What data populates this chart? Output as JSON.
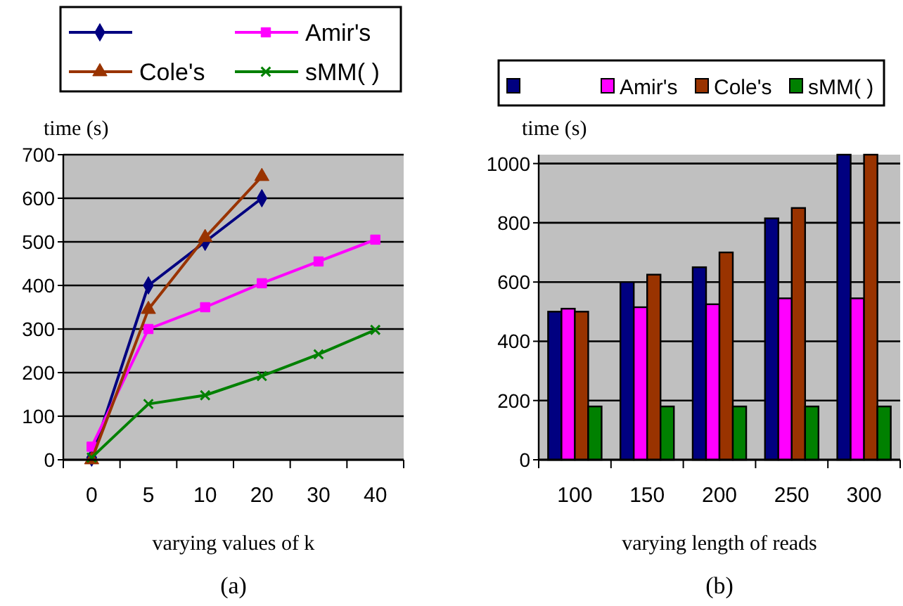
{
  "chart_data": [
    {
      "type": "line",
      "ylabel": "time (s)",
      "xlabel": "varying values of k",
      "annotations": [
        "(a)"
      ],
      "categories": [
        "0",
        "5",
        "10",
        "20",
        "30",
        "40"
      ],
      "ylim": [
        0,
        700
      ],
      "yticks": [
        0,
        100,
        200,
        300,
        400,
        500,
        600,
        700
      ],
      "grid": "y",
      "legend": "top",
      "series": [
        {
          "color": "#000080",
          "marker": "diamond",
          "values": [
            5,
            400,
            500,
            600,
            null,
            null
          ]
        },
        {
          "name": "Amir's",
          "color": "#ff00ff",
          "marker": "square",
          "values": [
            30,
            300,
            350,
            405,
            455,
            505
          ]
        },
        {
          "name": "Cole's",
          "color": "#993300",
          "marker": "triangle",
          "values": [
            0,
            345,
            510,
            650,
            null,
            null
          ]
        },
        {
          "name": "sMM( )",
          "color": "#008000",
          "marker": "cross",
          "values": [
            5,
            128,
            148,
            192,
            242,
            298
          ]
        }
      ]
    },
    {
      "type": "bar",
      "ylabel": "time (s)",
      "xlabel": "varying length of reads",
      "annotations": [
        "(b)"
      ],
      "categories": [
        "100",
        "150",
        "200",
        "250",
        "300"
      ],
      "ylim": [
        0,
        1030
      ],
      "yticks": [
        0,
        200,
        400,
        600,
        800,
        1000
      ],
      "grid": "y",
      "legend": "top",
      "series": [
        {
          "color": "#000080",
          "values": [
            500,
            600,
            650,
            815,
            1030
          ]
        },
        {
          "name": "Amir's",
          "color": "#ff00ff",
          "values": [
            510,
            515,
            525,
            545,
            545
          ]
        },
        {
          "name": "Cole's",
          "color": "#993300",
          "values": [
            500,
            625,
            700,
            850,
            1030
          ]
        },
        {
          "name": "sMM( )",
          "color": "#008000",
          "values": [
            180,
            180,
            180,
            180,
            180
          ]
        }
      ]
    }
  ]
}
